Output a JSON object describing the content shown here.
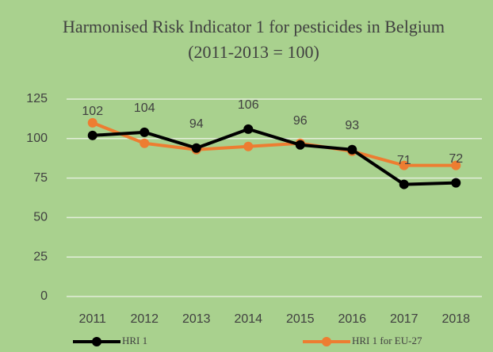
{
  "chart_data": {
    "type": "line",
    "title": "Harmonised Risk Indicator 1 for pesticides in Belgium",
    "subtitle": "(2011-2013 = 100)",
    "categories": [
      "2011",
      "2012",
      "2013",
      "2014",
      "2015",
      "2016",
      "2017",
      "2018"
    ],
    "series": [
      {
        "name": "HRI 1",
        "color": "#000000",
        "values": [
          102,
          104,
          94,
          106,
          96,
          93,
          71,
          72
        ]
      },
      {
        "name": "HRI 1 for EU-27",
        "color": "#ed7d31",
        "values": [
          110,
          97,
          93,
          95,
          97,
          92,
          83,
          83
        ]
      }
    ],
    "ylim": [
      0,
      125
    ],
    "yticks": [
      0,
      25,
      50,
      75,
      100,
      125
    ],
    "grid": true
  }
}
